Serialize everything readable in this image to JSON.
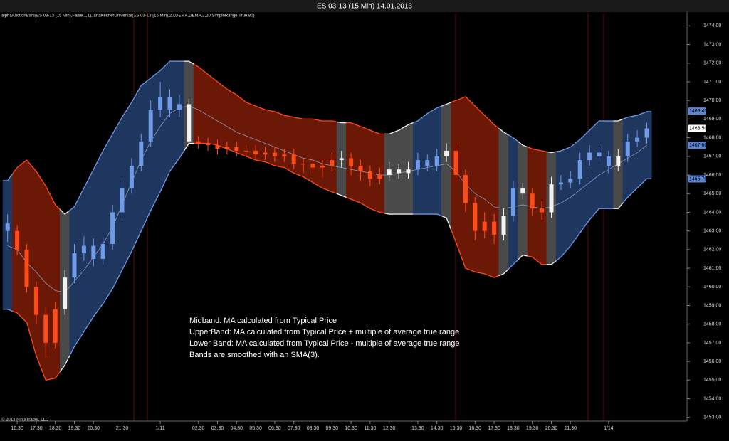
{
  "chart_data": {
    "type": "candlestick",
    "title": "ES 03-13 (15 Min)  14.01.2013",
    "subtitle": "alphaAuctionBars(ES 03-13 (15 Min),False,1,1), anaKeltnerUniversal(ES 03-13 (15 Min),20,DEMA,DEMA,2,20,SimpleRange,True,80)",
    "annotation": [
      "Midband:  MA calculated from Typical Price",
      "UpperBand: MA calculated from Typical Price + multiple of average true range",
      "Lower Band: MA calculated from Typical Price - multiple of average true range",
      "Bands are smoothed with an SMA(3)."
    ],
    "footer": "© 2013 NinjaTrader, LLC",
    "categories": [
      null,
      "16:30",
      null,
      "17:30",
      null,
      "18:30",
      null,
      "19:30",
      null,
      "20:30",
      null,
      null,
      "21:30",
      null,
      null,
      null,
      "1/11",
      null,
      null,
      null,
      "02:30",
      null,
      "03:30",
      null,
      "04:30",
      null,
      "05:30",
      null,
      "06:30",
      null,
      "07:30",
      null,
      "08:30",
      null,
      "09:30",
      null,
      "10:30",
      null,
      "11:30",
      null,
      "12:30",
      null,
      null,
      "13:30",
      null,
      "14:30",
      null,
      "15:30",
      null,
      "16:30",
      null,
      "17:30",
      null,
      "18:30",
      null,
      "19:30",
      null,
      "20:30",
      null,
      "21:30",
      null,
      null,
      null,
      "1/14",
      null,
      null,
      null,
      null
    ],
    "open": [
      1463.4,
      1463.0,
      1462.0,
      1460.0,
      1458.5,
      1457.0,
      1458.8,
      1460.5,
      1461.8,
      1462.2,
      1461.5,
      1462.3,
      1464.0,
      1465.3,
      1466.5,
      1467.8,
      1469.5,
      1470.2,
      1469.5,
      1469.8,
      1467.8,
      1467.7,
      1467.6,
      1467.4,
      1467.5,
      1467.3,
      1467.3,
      1467.1,
      1467.2,
      1467.0,
      1467.1,
      1466.6,
      1466.6,
      1466.4,
      1466.5,
      1466.8,
      1466.9,
      1466.5,
      1466.2,
      1465.8,
      1466.0,
      1466.3,
      1466.1,
      1466.3,
      1466.8,
      1466.5,
      1467.0,
      1467.3,
      1466.0,
      1464.5,
      1463.0,
      1463.5,
      1462.8,
      1463.8,
      1465.3,
      1465.0,
      1464.2,
      1464.0,
      1465.5,
      1465.6,
      1465.8,
      1466.8,
      1467.2,
      1467.0,
      1466.5,
      1467.0,
      1467.8,
      1468.0
    ],
    "high": [
      1463.9,
      1463.3,
      1462.3,
      1460.3,
      1458.9,
      1459.2,
      1460.9,
      1462.3,
      1462.7,
      1462.6,
      1462.7,
      1464.4,
      1465.7,
      1466.9,
      1468.2,
      1470.0,
      1471.0,
      1470.6,
      1470.3,
      1470.1,
      1468.1,
      1468.0,
      1467.9,
      1467.8,
      1467.8,
      1467.6,
      1467.6,
      1467.5,
      1467.5,
      1467.4,
      1467.4,
      1466.9,
      1466.9,
      1466.8,
      1467.2,
      1467.3,
      1467.2,
      1466.8,
      1466.5,
      1466.4,
      1466.7,
      1466.6,
      1466.7,
      1467.2,
      1467.1,
      1467.4,
      1467.7,
      1467.6,
      1466.3,
      1464.8,
      1464.0,
      1463.9,
      1464.2,
      1465.7,
      1465.6,
      1465.3,
      1464.6,
      1465.9,
      1466.0,
      1466.2,
      1467.2,
      1467.6,
      1467.5,
      1467.3,
      1467.4,
      1468.2,
      1468.4,
      1468.8
    ],
    "low": [
      1462.4,
      1461.7,
      1459.7,
      1458.0,
      1456.2,
      1456.7,
      1458.5,
      1460.2,
      1461.4,
      1461.1,
      1461.2,
      1462.0,
      1463.7,
      1465.0,
      1466.2,
      1467.5,
      1469.1,
      1469.1,
      1469.1,
      1467.5,
      1467.4,
      1467.3,
      1467.1,
      1467.1,
      1467.0,
      1467.0,
      1466.8,
      1466.8,
      1466.7,
      1466.7,
      1466.3,
      1466.1,
      1466.1,
      1465.9,
      1466.2,
      1466.4,
      1466.0,
      1465.7,
      1465.4,
      1465.5,
      1465.7,
      1465.8,
      1465.8,
      1466.0,
      1466.2,
      1466.2,
      1466.7,
      1465.7,
      1464.0,
      1462.5,
      1462.6,
      1462.3,
      1462.5,
      1463.5,
      1464.7,
      1463.8,
      1463.6,
      1463.7,
      1465.2,
      1465.3,
      1465.5,
      1466.5,
      1466.7,
      1466.1,
      1466.2,
      1466.7,
      1467.5,
      1467.7
    ],
    "close": [
      1463.0,
      1462.0,
      1460.0,
      1458.5,
      1457.0,
      1458.8,
      1460.5,
      1461.8,
      1462.2,
      1461.5,
      1462.3,
      1464.0,
      1465.3,
      1466.5,
      1467.8,
      1469.5,
      1470.2,
      1469.5,
      1469.8,
      1467.8,
      1467.7,
      1467.6,
      1467.4,
      1467.5,
      1467.3,
      1467.3,
      1467.1,
      1467.2,
      1467.0,
      1467.1,
      1466.6,
      1466.6,
      1466.4,
      1466.5,
      1466.8,
      1466.9,
      1466.5,
      1466.2,
      1465.8,
      1466.0,
      1466.3,
      1466.1,
      1466.3,
      1466.8,
      1466.5,
      1467.0,
      1467.3,
      1466.0,
      1464.5,
      1463.0,
      1463.5,
      1462.8,
      1463.8,
      1465.3,
      1465.0,
      1464.2,
      1464.0,
      1465.5,
      1465.6,
      1465.8,
      1466.8,
      1467.2,
      1467.0,
      1466.5,
      1467.0,
      1467.8,
      1468.0,
      1468.5
    ],
    "upper": [
      1465.7,
      1466.4,
      1466.8,
      1466.2,
      1465.4,
      1464.4,
      1463.9,
      1464.3,
      1465.3,
      1466.3,
      1467.3,
      1468.2,
      1469.1,
      1469.9,
      1470.8,
      1471.2,
      1471.6,
      1472.1,
      1472.1,
      1472.1,
      1471.8,
      1471.4,
      1471.0,
      1470.6,
      1470.3,
      1469.9,
      1469.7,
      1469.5,
      1469.4,
      1469.2,
      1469.1,
      1469.0,
      1469.0,
      1468.9,
      1468.9,
      1468.8,
      1468.8,
      1468.6,
      1468.4,
      1468.2,
      1468.2,
      1468.4,
      1468.7,
      1468.9,
      1469.3,
      1469.6,
      1469.8,
      1470.0,
      1470.2,
      1469.7,
      1469.2,
      1468.7,
      1468.3,
      1468.0,
      1467.6,
      1467.4,
      1467.3,
      1467.2,
      1467.3,
      1467.5,
      1467.9,
      1468.4,
      1468.9,
      1468.9,
      1468.9,
      1469.1,
      1469.2,
      1469.4
    ],
    "lower": [
      1458.8,
      1458.6,
      1458.1,
      1456.3,
      1455.0,
      1455.1,
      1455.8,
      1456.8,
      1457.6,
      1458.4,
      1459.1,
      1459.9,
      1460.9,
      1461.9,
      1463.0,
      1464.1,
      1465.1,
      1466.2,
      1466.9,
      1467.7,
      1467.7,
      1467.7,
      1467.6,
      1467.4,
      1467.2,
      1467.0,
      1466.8,
      1466.7,
      1466.5,
      1466.4,
      1466.1,
      1465.9,
      1465.6,
      1465.3,
      1465.1,
      1464.9,
      1464.7,
      1464.5,
      1464.2,
      1464.0,
      1463.9,
      1463.9,
      1463.9,
      1463.9,
      1463.9,
      1463.9,
      1463.7,
      1462.4,
      1461.0,
      1460.8,
      1460.7,
      1460.5,
      1460.7,
      1461.2,
      1461.7,
      1461.6,
      1461.2,
      1461.2,
      1461.6,
      1462.2,
      1462.9,
      1463.6,
      1464.2,
      1464.2,
      1464.2,
      1464.8,
      1465.3,
      1465.8
    ],
    "mid": [
      1462.2,
      1462.0,
      1461.3,
      1460.8,
      1460.2,
      1459.8,
      1459.7,
      1460.3,
      1460.9,
      1461.6,
      1462.3,
      1463.2,
      1464.4,
      1465.6,
      1466.8,
      1467.8,
      1468.6,
      1469.3,
      1469.6,
      1469.7,
      1469.5,
      1469.2,
      1468.9,
      1468.6,
      1468.3,
      1468.1,
      1467.9,
      1467.7,
      1467.5,
      1467.3,
      1467.1,
      1466.9,
      1466.8,
      1466.6,
      1466.5,
      1466.4,
      1466.3,
      1466.2,
      1466.1,
      1466.0,
      1466.0,
      1466.1,
      1466.2,
      1466.3,
      1466.4,
      1466.5,
      1466.6,
      1466.2,
      1465.5,
      1465.0,
      1464.7,
      1464.3,
      1464.2,
      1464.3,
      1464.4,
      1464.3,
      1464.2,
      1464.3,
      1464.5,
      1464.8,
      1465.2,
      1465.6,
      1466.0,
      1466.3,
      1466.6,
      1466.9,
      1467.2,
      1467.6
    ],
    "mid_color": "#9fb1dc",
    "band_colors": [
      "#1f375f",
      "#6b1906",
      "#6b1906",
      "#6b1906",
      "#6b1906",
      "#6b1906",
      "#4a4a4a",
      "#1f375f",
      "#1f375f",
      "#1f375f",
      "#1f375f",
      "#1f375f",
      "#1f375f",
      "#1f375f",
      "#1f375f",
      "#1f375f",
      "#1f375f",
      "#1f375f",
      "#1f375f",
      "#4a4a4a",
      "#6b1906",
      "#6b1906",
      "#6b1906",
      "#6b1906",
      "#6b1906",
      "#6b1906",
      "#6b1906",
      "#6b1906",
      "#6b1906",
      "#6b1906",
      "#6b1906",
      "#6b1906",
      "#6b1906",
      "#6b1906",
      "#6b1906",
      "#4a4a4a",
      "#6b1906",
      "#6b1906",
      "#6b1906",
      "#6b1906",
      "#4a4a4a",
      "#4a4a4a",
      "#4a4a4a",
      "#1f375f",
      "#1f375f",
      "#1f375f",
      "#4a4a4a",
      "#6b1906",
      "#6b1906",
      "#6b1906",
      "#6b1906",
      "#6b1906",
      "#4a4a4a",
      "#1f375f",
      "#4a4a4a",
      "#6b1906",
      "#6b1906",
      "#4a4a4a",
      "#1f375f",
      "#1f375f",
      "#1f375f",
      "#1f375f",
      "#1f375f",
      "#1f375f",
      "#4a4a4a",
      "#1f375f",
      "#1f375f",
      "#1f375f"
    ],
    "candle_colors": [
      "#6f9ae8",
      "#ff4b16",
      "#ff4b16",
      "#ff4b16",
      "#ff4b16",
      "#ff4b16",
      "#f2f2f2",
      "#6f9ae8",
      "#6f9ae8",
      "#6f9ae8",
      "#6f9ae8",
      "#6f9ae8",
      "#6f9ae8",
      "#6f9ae8",
      "#6f9ae8",
      "#6f9ae8",
      "#6f9ae8",
      "#6f9ae8",
      "#6f9ae8",
      "#f2f2f2",
      "#ff4b16",
      "#ff4b16",
      "#ff4b16",
      "#ff4b16",
      "#ff4b16",
      "#ff4b16",
      "#ff4b16",
      "#ff4b16",
      "#ff4b16",
      "#ff4b16",
      "#ff4b16",
      "#ff4b16",
      "#ff4b16",
      "#ff4b16",
      "#ff4b16",
      "#f2f2f2",
      "#ff4b16",
      "#ff4b16",
      "#ff4b16",
      "#ff4b16",
      "#f2f2f2",
      "#f2f2f2",
      "#f2f2f2",
      "#6f9ae8",
      "#6f9ae8",
      "#6f9ae8",
      "#f2f2f2",
      "#ff4b16",
      "#ff4b16",
      "#ff4b16",
      "#ff4b16",
      "#ff4b16",
      "#f2f2f2",
      "#6f9ae8",
      "#f2f2f2",
      "#ff4b16",
      "#ff4b16",
      "#f2f2f2",
      "#6f9ae8",
      "#6f9ae8",
      "#6f9ae8",
      "#6f9ae8",
      "#6f9ae8",
      "#6f9ae8",
      "#f2f2f2",
      "#6f9ae8",
      "#6f9ae8",
      "#6f9ae8"
    ],
    "ylim": [
      1452.8,
      1474.7
    ],
    "yticks": [
      {
        "value": 1453,
        "label": "1453,00"
      },
      {
        "value": 1454,
        "label": "1454,00"
      },
      {
        "value": 1455,
        "label": "1455,00"
      },
      {
        "value": 1456,
        "label": "1456,00"
      },
      {
        "value": 1457,
        "label": "1457,00"
      },
      {
        "value": 1458,
        "label": "1458,00"
      },
      {
        "value": 1459,
        "label": "1459,00"
      },
      {
        "value": 1460,
        "label": "1460,00"
      },
      {
        "value": 1461,
        "label": "1461,00"
      },
      {
        "value": 1462,
        "label": "1462,00"
      },
      {
        "value": 1463,
        "label": "1463,00"
      },
      {
        "value": 1464,
        "label": "1464,00"
      },
      {
        "value": 1465,
        "label": "1465,00"
      },
      {
        "value": 1466,
        "label": "1466,00"
      },
      {
        "value": 1467,
        "label": "1467,00"
      },
      {
        "value": 1468,
        "label": "1468,00"
      },
      {
        "value": 1469,
        "label": "1469,00"
      },
      {
        "value": 1470,
        "label": "1470,00"
      },
      {
        "value": 1471,
        "label": "1471,00"
      },
      {
        "value": 1472,
        "label": "1472,00"
      },
      {
        "value": 1473,
        "label": "1473,00"
      },
      {
        "value": 1474,
        "label": "1474,00"
      }
    ],
    "price_markers": {
      "values": [
        1469.43,
        1468.5,
        1467.6,
        1465.79
      ],
      "value_labels": [
        "1469,43",
        "1468,50",
        "1467,60",
        "1465,79"
      ],
      "colors": [
        "#5b86d6",
        "#ffffff",
        "#5b86d6",
        "#5b86d6"
      ]
    }
  }
}
